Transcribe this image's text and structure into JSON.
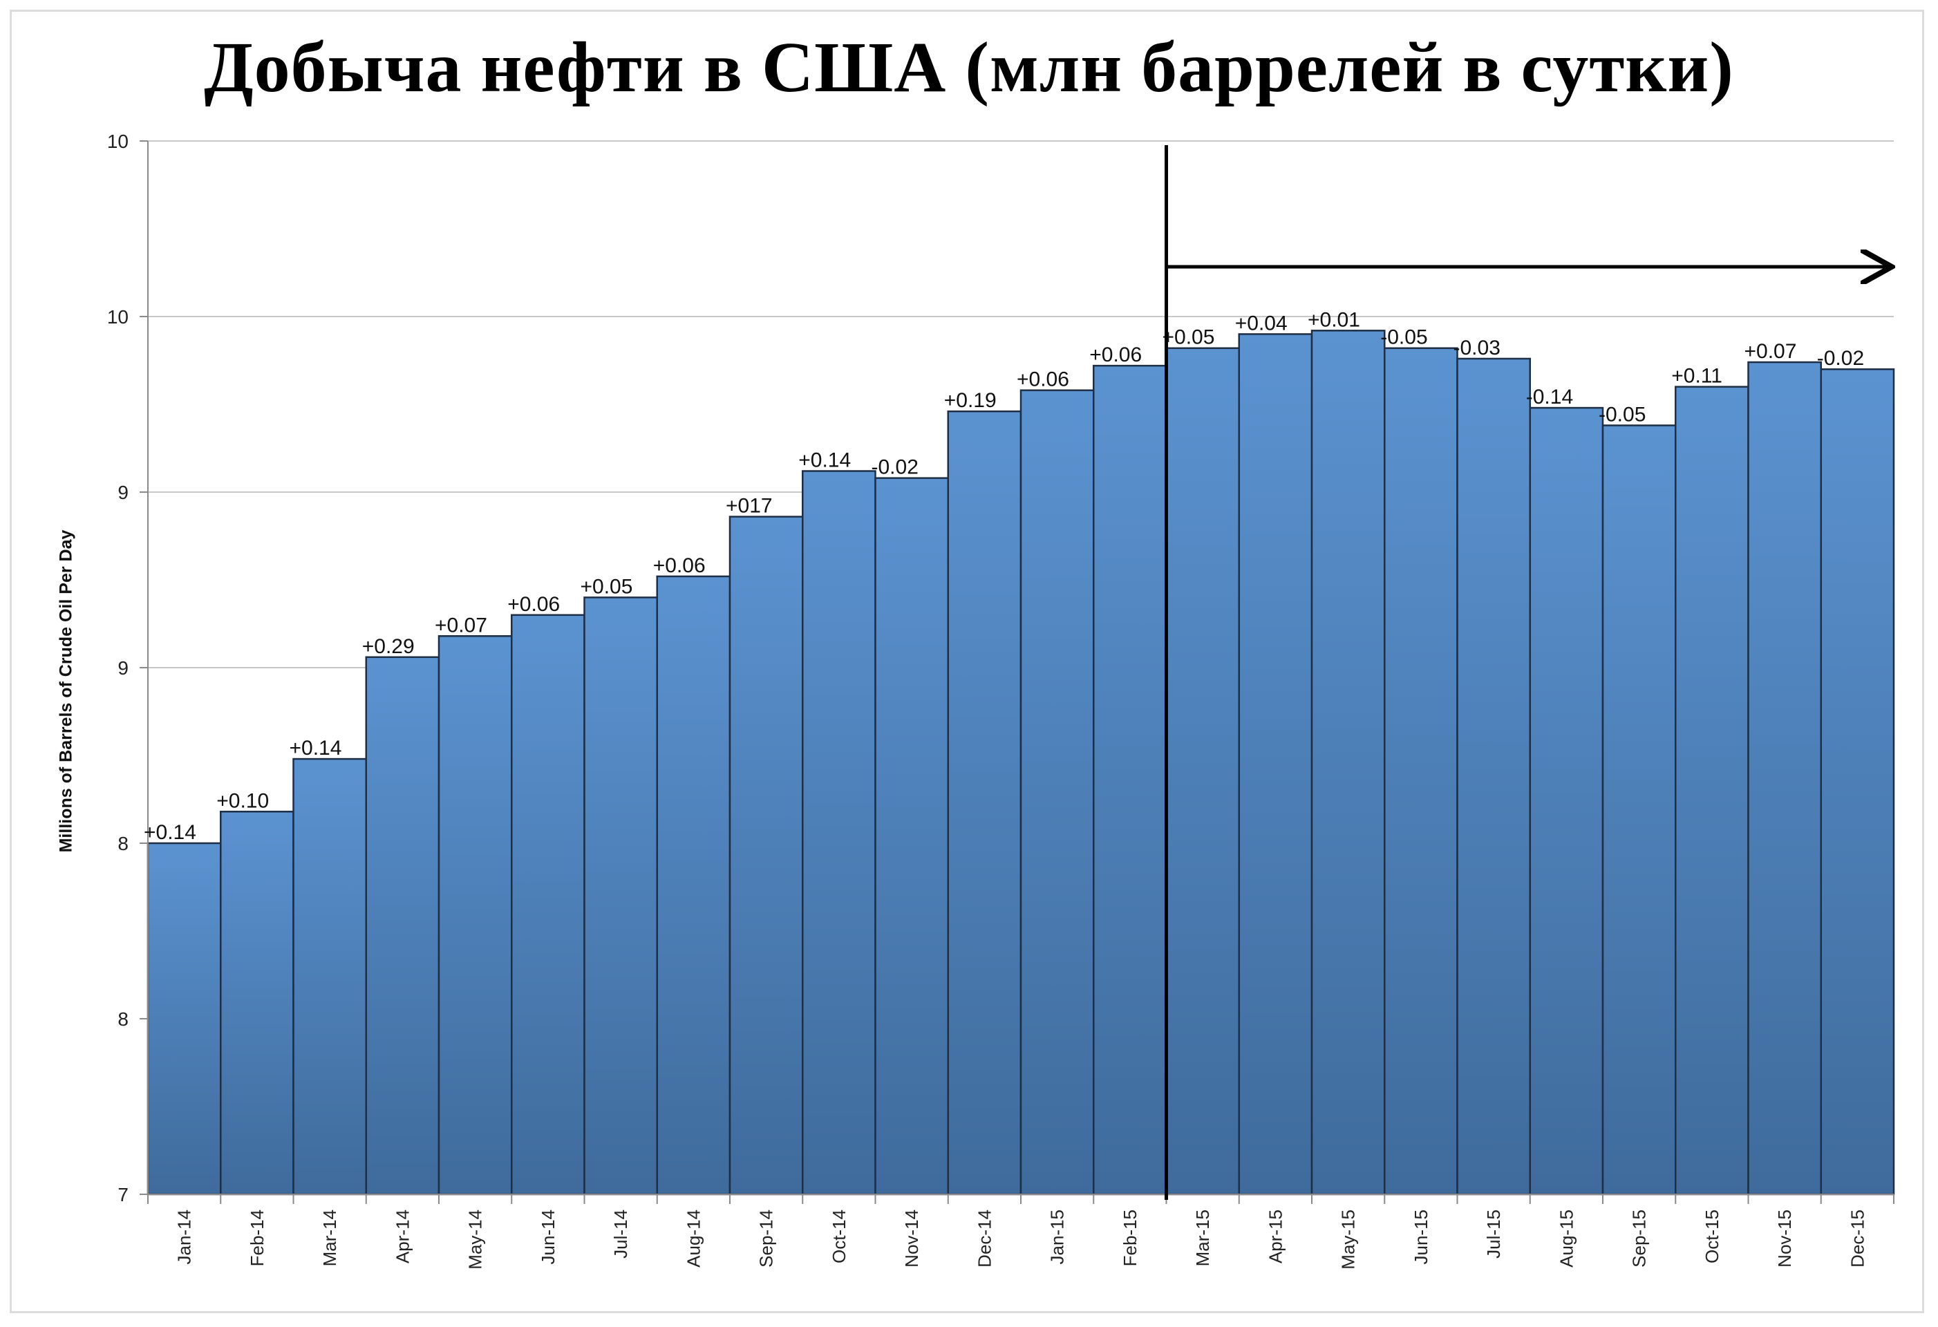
{
  "chart_data": {
    "type": "bar",
    "title": "Добыча нефти в США (млн баррелей в сутки)",
    "xlabel": "",
    "ylabel": "Millions of Barrels of Crude Oil Per Day",
    "ylim": [
      7,
      10
    ],
    "y_ticks": [
      "7",
      "8",
      "8",
      "9",
      "9",
      "10",
      "10"
    ],
    "grid": true,
    "categories": [
      "Jan-14",
      "Feb-14",
      "Mar-14",
      "Apr-14",
      "May-14",
      "Jun-14",
      "Jul-14",
      "Aug-14",
      "Sep-14",
      "Oct-14",
      "Nov-14",
      "Dec-14",
      "Jan-15",
      "Feb-15",
      "Mar-15",
      "Apr-15",
      "May-15",
      "Jun-15",
      "Jul-15",
      "Aug-15",
      "Sep-15",
      "Oct-15",
      "Nov-15",
      "Dec-15"
    ],
    "values": [
      8.0,
      8.09,
      8.24,
      8.53,
      8.59,
      8.65,
      8.7,
      8.76,
      8.93,
      9.06,
      9.04,
      9.23,
      9.29,
      9.36,
      9.41,
      9.45,
      9.46,
      9.41,
      9.38,
      9.24,
      9.19,
      9.3,
      9.37,
      9.35
    ],
    "data_labels": [
      "+0.14",
      "+0.10",
      "+0.14",
      "+0.29",
      "+0.07",
      "+0.06",
      "+0.05",
      "+0.06",
      "+017",
      "+0.14",
      "-0.02",
      "+0.19",
      "+0.06",
      "+0.06",
      "+0.05",
      "+0.04",
      "+0.01",
      "-0.05",
      "-0.03",
      "-0.14",
      "-0.05",
      "+0.11",
      "+0.07",
      "-0.02"
    ],
    "colors": {
      "bar_top": "#5b93d1",
      "bar_bottom": "#3f6b9c",
      "bar_edge": "#1e2e44",
      "grid": "#c8c8c8",
      "axis": "#8a8a8a",
      "marker": "#000000"
    },
    "annotations": [
      {
        "type": "vertical-line",
        "after_category": "Feb-15"
      },
      {
        "type": "arrow",
        "from_category": "Mar-15",
        "to_category": "Dec-15",
        "direction": "right"
      }
    ]
  }
}
